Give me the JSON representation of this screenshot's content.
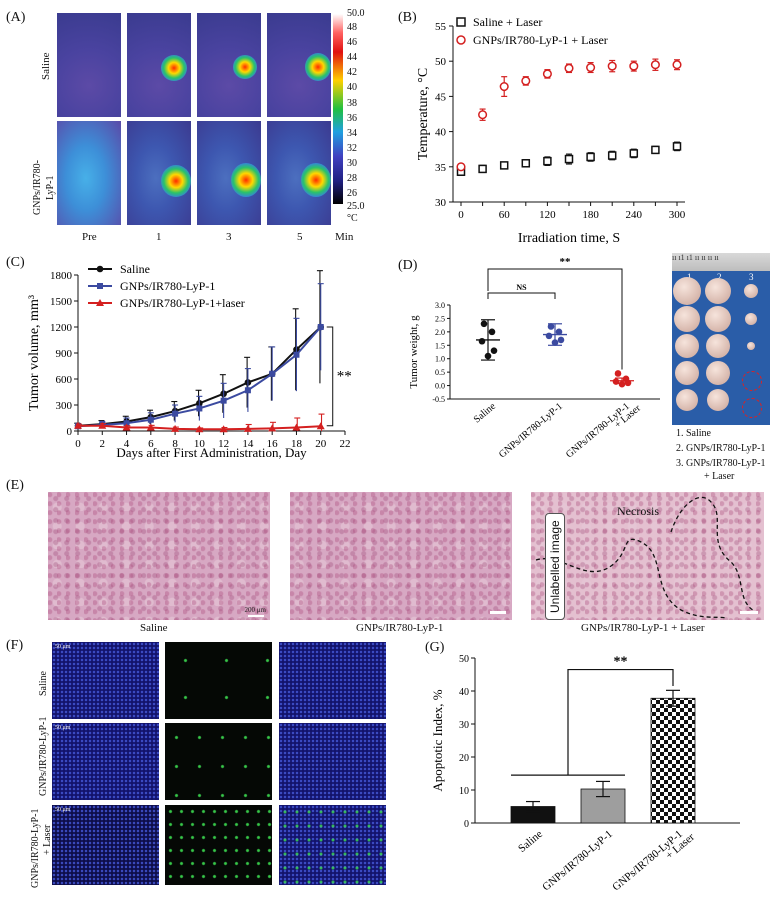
{
  "panels": {
    "A": {
      "label": "(A)",
      "row_labels": [
        "Saline",
        "GNPs/IR780-\nLyP-1"
      ],
      "row_label_saline": "Saline",
      "row_label_gnps_1": "GNPs/IR780-",
      "row_label_gnps_2": "LyP-1",
      "col_labels": [
        "Pre",
        "1",
        "3",
        "5"
      ],
      "unit": "Min",
      "scale_max": "50.0",
      "scale_min": "25.0",
      "scale_unit": "°C",
      "scale_ticks": [
        "48",
        "46",
        "44",
        "42",
        "40",
        "38",
        "36",
        "34",
        "32",
        "30",
        "28",
        "26"
      ]
    },
    "B": {
      "label": "(B)"
    },
    "C": {
      "label": "(C)"
    },
    "D": {
      "label": "(D)",
      "photo_cols": [
        "1",
        "2",
        "3"
      ],
      "photo_ruler": "ıı ı1 ı1 ıı ıı ıı ıı",
      "legend_1": "1. Saline",
      "legend_2": "2. GNPs/IR780-LyP-1",
      "legend_3a": "3. GNPs/IR780-LyP-1",
      "legend_3b": "+ Laser"
    },
    "E": {
      "label": "(E)",
      "captions": [
        "Saline",
        "GNPs/IR780-LyP-1",
        "GNPs/IR780-LyP-1 + Laser"
      ],
      "scale_text": "200 μm",
      "necrosis": "Necrosis",
      "unlabelled": "Unlabelled image"
    },
    "F": {
      "label": "(F)",
      "row_labels": [
        "Saline",
        "GNPs/IR780-LyP-1",
        "GNPs/IR780-LyP-1\n+ Laser"
      ],
      "row_label_3a": "GNPs/IR780-LyP-1",
      "row_label_3b": "+ Laser",
      "scale_text": "50 μm"
    },
    "G": {
      "label": "(G)"
    }
  },
  "chart_data": [
    {
      "id": "B",
      "type": "scatter",
      "xlabel": "Irradiation time, S",
      "ylabel": "Temperature, °C",
      "xlim": [
        0,
        300
      ],
      "ylim": [
        30,
        55
      ],
      "xticks": [
        0,
        30,
        60,
        90,
        120,
        150,
        180,
        210,
        240,
        270,
        300
      ],
      "xtick_labels": [
        "0",
        "60",
        "120",
        "180",
        "240",
        "300"
      ],
      "yticks": [
        30,
        35,
        40,
        45,
        50,
        55
      ],
      "series": [
        {
          "name": "Saline + Laser",
          "color": "#111111",
          "x": [
            0,
            30,
            60,
            90,
            120,
            150,
            180,
            210,
            240,
            270,
            300
          ],
          "y": [
            34.3,
            34.7,
            35.2,
            35.5,
            35.8,
            36.1,
            36.4,
            36.6,
            36.9,
            37.4,
            37.9
          ],
          "err": [
            0.5,
            0.5,
            0.4,
            0.5,
            0.6,
            0.7,
            0.6,
            0.6,
            0.6,
            0.5,
            0.6
          ]
        },
        {
          "name": "GNPs/IR780-LyP-1 + Laser",
          "color": "#d42020",
          "x": [
            0,
            30,
            60,
            90,
            120,
            150,
            180,
            210,
            240,
            270,
            300
          ],
          "y": [
            35.0,
            42.4,
            46.4,
            47.2,
            48.2,
            49.0,
            49.1,
            49.3,
            49.3,
            49.5,
            49.5
          ],
          "err": [
            0.4,
            0.8,
            1.4,
            0.6,
            0.6,
            0.6,
            0.7,
            0.8,
            0.7,
            0.8,
            0.7
          ]
        }
      ]
    },
    {
      "id": "C",
      "type": "line",
      "xlabel": "Days after First Administration, Day",
      "ylabel": "Tumor volume, mm³",
      "xlim": [
        0,
        22
      ],
      "ylim": [
        0,
        1800
      ],
      "xticks": [
        0,
        2,
        4,
        6,
        8,
        10,
        12,
        14,
        16,
        18,
        20,
        22
      ],
      "yticks": [
        0,
        300,
        600,
        900,
        1200,
        1500,
        1800
      ],
      "annotation": "**",
      "series": [
        {
          "name": "Saline",
          "color": "#111111",
          "marker": "circle",
          "x": [
            0,
            2,
            4,
            6,
            8,
            10,
            12,
            14,
            16,
            18,
            20
          ],
          "y": [
            60,
            80,
            110,
            160,
            230,
            320,
            430,
            560,
            660,
            940,
            1200
          ],
          "err": [
            30,
            40,
            60,
            80,
            110,
            150,
            220,
            290,
            310,
            470,
            650
          ]
        },
        {
          "name": "GNPs/IR780-LyP-1",
          "color": "#3b4aa0",
          "marker": "square",
          "x": [
            0,
            2,
            4,
            6,
            8,
            10,
            12,
            14,
            16,
            18,
            20
          ],
          "y": [
            55,
            70,
            90,
            130,
            200,
            260,
            350,
            470,
            660,
            880,
            1200
          ],
          "err": [
            30,
            40,
            60,
            80,
            100,
            140,
            200,
            250,
            310,
            420,
            500
          ]
        },
        {
          "name": "GNPs/IR780-LyP-1+laser",
          "color": "#d42020",
          "marker": "triangle",
          "x": [
            0,
            2,
            4,
            6,
            8,
            10,
            12,
            14,
            16,
            18,
            20
          ],
          "y": [
            60,
            60,
            40,
            40,
            25,
            20,
            20,
            25,
            30,
            40,
            55
          ],
          "err": [
            20,
            25,
            20,
            25,
            20,
            15,
            20,
            50,
            70,
            110,
            140
          ]
        }
      ]
    },
    {
      "id": "D",
      "type": "scatter",
      "ylabel": "Tumor weight, g",
      "ylim": [
        -0.5,
        3.0
      ],
      "yticks": [
        -0.5,
        0.0,
        0.5,
        1.0,
        1.5,
        2.0,
        2.5,
        3.0
      ],
      "ytick_labels": [
        "-0.5",
        "0.0",
        "0.5",
        "1.0",
        "1.5",
        "2.0",
        "2.5",
        "3.0"
      ],
      "categories": [
        "Saline",
        "GNPs/IR780-LyP-1",
        "GNPs/IR780-LyP-1\n+ Laser"
      ],
      "category_lines": [
        [
          "Saline"
        ],
        [
          "GNPs/IR780-LyP-1"
        ],
        [
          "GNPs/IR780-LyP-1",
          "+ Laser"
        ]
      ],
      "colors": [
        "#111111",
        "#3b4aa0",
        "#d42020"
      ],
      "points": [
        [
          2.3,
          2.0,
          1.65,
          1.3,
          1.1
        ],
        [
          2.2,
          2.0,
          1.85,
          1.7,
          1.6
        ],
        [
          0.45,
          0.25,
          0.15,
          0.1,
          0.05
        ]
      ],
      "means": [
        1.7,
        1.9,
        0.18
      ],
      "err": [
        0.75,
        0.4,
        0.1
      ],
      "sig": [
        {
          "from": 0,
          "to": 1,
          "label": "NS"
        },
        {
          "from": 0,
          "to": 2,
          "label": "**"
        }
      ]
    },
    {
      "id": "G",
      "type": "bar",
      "ylabel": "Apoptotic Index, %",
      "ylim": [
        0,
        50
      ],
      "yticks": [
        0,
        10,
        20,
        30,
        40,
        50
      ],
      "categories": [
        "Saline",
        "GNPs/IR780-LyP-1",
        "GNPs/IR780-LyP-1\n+ Laser"
      ],
      "category_lines": [
        [
          "Saline"
        ],
        [
          "GNPs/IR780-LyP-1"
        ],
        [
          "GNPs/IR780-LyP-1",
          "+ Laser"
        ]
      ],
      "values": [
        5.0,
        10.3,
        37.8
      ],
      "err": [
        1.5,
        2.3,
        2.4
      ],
      "fills": [
        "#111111",
        "#9e9e9e",
        "checker"
      ],
      "annotation": "**"
    }
  ]
}
